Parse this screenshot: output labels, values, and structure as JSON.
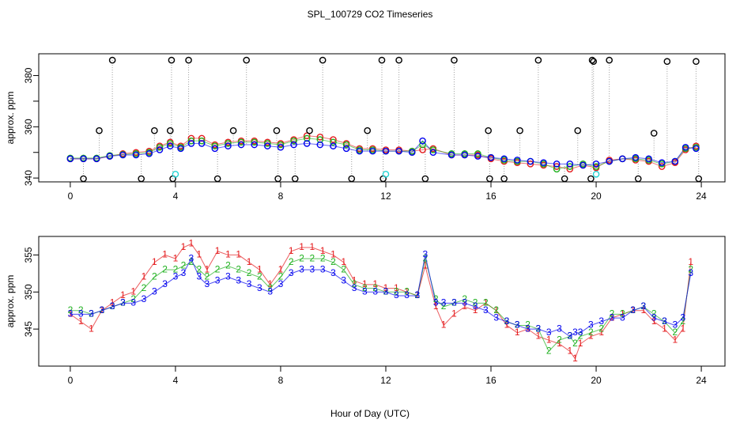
{
  "title": "SPL_100729  CO2 Timeseries",
  "xlabel": "Hour of Day (UTC)",
  "chart_data": [
    {
      "type": "scatter",
      "panel": "top",
      "ylabel": "approx. ppm",
      "xlim": [
        -1.2,
        24.9
      ],
      "ylim": [
        338.5,
        388.5
      ],
      "xticks": [
        0,
        4,
        8,
        12,
        16,
        20,
        24
      ],
      "yticks": [
        340,
        360,
        380
      ],
      "yticks_minor": [
        350,
        370
      ],
      "colors": {
        "black": "#000000",
        "red": "#e41a1c",
        "green": "#1fb11f",
        "blue": "#0000ee",
        "cyan": "#22d3d3",
        "drop": "#9a9a9a"
      },
      "series": [
        {
          "color": "red",
          "x": [
            0,
            0.5,
            1,
            1.5,
            2,
            2.5,
            3,
            3.4,
            3.8,
            4.2,
            4.6,
            5,
            5.5,
            6,
            6.5,
            7,
            7.5,
            8,
            8.5,
            9,
            9.5,
            10,
            10.5,
            11,
            11.5,
            12,
            12.5,
            13,
            13.4,
            13.8,
            14.5,
            15,
            15.5,
            16,
            16.5,
            17,
            17.5,
            18,
            18.5,
            19,
            19.5,
            20,
            20.5,
            21,
            21.5,
            22,
            22.5,
            23,
            23.4,
            23.8
          ],
          "y": [
            347.5,
            347.5,
            347.5,
            348.5,
            349.5,
            350,
            350.5,
            352.5,
            354,
            352.5,
            355.5,
            355.5,
            353,
            354,
            354.5,
            354.5,
            354,
            353.5,
            355,
            356.5,
            356,
            355,
            353.5,
            351.5,
            351.5,
            351,
            351,
            350.5,
            351,
            351.5,
            349,
            349,
            349,
            347.5,
            346.5,
            346,
            345.5,
            345,
            344.5,
            343.5,
            345,
            344,
            347,
            347.5,
            347,
            346.5,
            344.5,
            346,
            351,
            352.5
          ]
        },
        {
          "color": "green",
          "x": [
            0,
            0.5,
            1,
            1.5,
            2,
            2.5,
            3,
            3.4,
            3.8,
            4.2,
            4.6,
            5,
            5.5,
            6,
            6.5,
            7,
            7.5,
            8,
            8.5,
            9,
            9.5,
            10,
            10.5,
            11,
            11.5,
            12,
            12.5,
            13,
            13.4,
            13.8,
            14.5,
            15,
            15.5,
            16,
            16.5,
            17,
            17.5,
            18,
            18.5,
            19,
            19.5,
            20,
            20.5,
            21,
            21.5,
            22,
            22.5,
            23,
            23.4,
            23.8
          ],
          "y": [
            347.8,
            347.8,
            347.8,
            348.8,
            349.2,
            349.5,
            350,
            352,
            353.5,
            352,
            354.5,
            354.5,
            352.5,
            353.5,
            354,
            354,
            353.5,
            353,
            354.5,
            355.5,
            355,
            354,
            353,
            351,
            351,
            350.5,
            350.5,
            350.5,
            353,
            351,
            349.5,
            349.5,
            349.5,
            348,
            347,
            346.5,
            346.5,
            345.5,
            343.5,
            344.5,
            345.5,
            344.5,
            346.5,
            347.5,
            347.5,
            347,
            345.5,
            346.5,
            351.5,
            352
          ]
        },
        {
          "color": "blue",
          "x": [
            0,
            0.5,
            1,
            1.5,
            2,
            2.5,
            3,
            3.4,
            3.8,
            4.2,
            4.6,
            5,
            5.5,
            6,
            6.5,
            7,
            7.5,
            8,
            8.5,
            9,
            9.5,
            10,
            10.5,
            11,
            11.5,
            12,
            12.5,
            13,
            13.4,
            13.8,
            14.5,
            15,
            15.5,
            16,
            16.5,
            17,
            17.5,
            18,
            18.5,
            19,
            19.5,
            20,
            20.5,
            21,
            21.5,
            22,
            22.5,
            23,
            23.4,
            23.8
          ],
          "y": [
            347.5,
            347.5,
            347.5,
            348.5,
            349,
            349,
            349.5,
            351,
            352.5,
            351.5,
            353.5,
            353.5,
            351.5,
            352.5,
            353,
            353,
            352.5,
            352,
            353,
            353.5,
            353,
            352.5,
            351.5,
            350.5,
            350.5,
            350.5,
            350.5,
            350,
            354.5,
            350,
            349,
            349,
            348.5,
            348,
            347.5,
            347,
            346.5,
            346,
            345.5,
            345.5,
            345,
            345.5,
            346.5,
            347.5,
            348,
            347.5,
            346,
            346.5,
            352,
            351.5
          ]
        },
        {
          "color": "black",
          "x": [
            0.5,
            1.1,
            1.6,
            2.7,
            3.2,
            3.8,
            3.85,
            3.9,
            4.5,
            5.6,
            6.2,
            6.7,
            7.85,
            7.9,
            8.55,
            9.1,
            9.6,
            10.7,
            11.3,
            11.85,
            11.9,
            12.5,
            13.5,
            14.6,
            15.9,
            15.95,
            16.5,
            17.1,
            17.8,
            18.8,
            19.3,
            19.8,
            19.85,
            19.9,
            20.5,
            21.6,
            22.2,
            22.7,
            23.8,
            23.9
          ],
          "y": [
            339.5,
            358.5,
            386,
            339.5,
            358.5,
            358.5,
            386,
            339.5,
            386,
            339.5,
            358.5,
            386,
            358.5,
            339.5,
            339.5,
            358.5,
            386,
            339.5,
            358.5,
            386,
            339.5,
            386,
            339.5,
            386,
            358.5,
            339.5,
            339.5,
            358.5,
            386,
            339.5,
            358.5,
            339.5,
            386,
            385.5,
            386,
            339.5,
            357.5,
            385.5,
            385.5,
            339
          ]
        },
        {
          "color": "cyan",
          "x": [
            4,
            12,
            20
          ],
          "y": [
            341.5,
            341.5,
            341.5
          ]
        }
      ]
    },
    {
      "type": "scatter",
      "panel": "bottom",
      "ylabel": "approx. ppm",
      "xlim": [
        -1.2,
        24.9
      ],
      "ylim": [
        340,
        357.5
      ],
      "xticks": [
        0,
        4,
        8,
        12,
        16,
        20,
        24
      ],
      "yticks": [
        345,
        350,
        355
      ],
      "colors": {
        "1": "#e41a1c",
        "2": "#1fb11f",
        "3": "#0000ee"
      },
      "series": [
        {
          "label": "1",
          "x": [
            0,
            0.4,
            0.8,
            1.2,
            1.6,
            2,
            2.4,
            2.8,
            3.2,
            3.6,
            4,
            4.3,
            4.6,
            4.9,
            5.2,
            5.6,
            6,
            6.4,
            6.8,
            7.2,
            7.6,
            8,
            8.4,
            8.8,
            9.2,
            9.6,
            10,
            10.4,
            10.8,
            11.2,
            11.6,
            12,
            12.4,
            12.8,
            13.2,
            13.5,
            13.9,
            14.2,
            14.6,
            15,
            15.4,
            15.8,
            16.2,
            16.6,
            17,
            17.4,
            17.8,
            18.2,
            18.6,
            19,
            19.2,
            19.4,
            19.8,
            20.2,
            20.6,
            21,
            21.4,
            21.8,
            22.2,
            22.6,
            23,
            23.3,
            23.6
          ],
          "y": [
            347,
            346,
            345,
            347.5,
            348.5,
            349.5,
            350,
            352,
            354,
            355,
            354.5,
            356,
            356.5,
            355,
            353,
            355.5,
            355,
            355,
            354,
            353,
            351,
            353,
            355.5,
            356,
            356,
            355.5,
            355,
            354,
            351.5,
            351,
            351,
            350.5,
            350.5,
            350,
            349.5,
            353.5,
            348,
            345.5,
            347,
            348,
            347.5,
            348.5,
            347.5,
            345.5,
            344.5,
            345,
            344,
            343.5,
            343,
            342,
            341,
            343,
            344,
            344.5,
            346.5,
            347,
            347.5,
            347.5,
            346,
            345,
            343.5,
            345,
            354
          ]
        },
        {
          "label": "2",
          "x": [
            0,
            0.4,
            0.8,
            1.2,
            1.6,
            2,
            2.4,
            2.8,
            3.2,
            3.6,
            4,
            4.3,
            4.6,
            4.9,
            5.2,
            5.6,
            6,
            6.4,
            6.8,
            7.2,
            7.6,
            8,
            8.4,
            8.8,
            9.2,
            9.6,
            10,
            10.4,
            10.8,
            11.2,
            11.6,
            12,
            12.4,
            12.8,
            13.2,
            13.5,
            13.9,
            14.2,
            14.6,
            15,
            15.4,
            15.8,
            16.2,
            16.6,
            17,
            17.4,
            17.8,
            18.2,
            18.6,
            19,
            19.2,
            19.4,
            19.8,
            20.2,
            20.6,
            21,
            21.4,
            21.8,
            22.2,
            22.6,
            23,
            23.3,
            23.6
          ],
          "y": [
            347.5,
            347.5,
            347,
            347.5,
            348,
            348.5,
            349,
            350.5,
            352,
            353,
            353,
            353.5,
            354,
            353,
            352,
            353,
            353.5,
            353,
            352.5,
            352,
            350.5,
            352,
            354,
            354.5,
            354.5,
            354.5,
            354,
            353,
            351,
            350.5,
            350.5,
            350,
            350,
            350,
            349.5,
            354.5,
            349,
            348,
            348.5,
            349,
            348.5,
            348.5,
            347.5,
            346,
            345.5,
            345.5,
            345,
            342,
            343.5,
            344,
            343,
            344,
            344.5,
            345,
            347,
            347,
            347.5,
            348,
            347,
            346,
            344.5,
            346,
            353
          ]
        },
        {
          "label": "3",
          "x": [
            0,
            0.4,
            0.8,
            1.2,
            1.6,
            2,
            2.4,
            2.8,
            3.2,
            3.6,
            4,
            4.3,
            4.6,
            4.9,
            5.2,
            5.6,
            6,
            6.4,
            6.8,
            7.2,
            7.6,
            8,
            8.4,
            8.8,
            9.2,
            9.6,
            10,
            10.4,
            10.8,
            11.2,
            11.6,
            12,
            12.4,
            12.8,
            13.2,
            13.5,
            13.9,
            14.2,
            14.6,
            15,
            15.4,
            15.8,
            16.2,
            16.6,
            17,
            17.4,
            17.8,
            18.2,
            18.6,
            19,
            19.2,
            19.4,
            19.8,
            20.2,
            20.6,
            21,
            21.4,
            21.8,
            22.2,
            22.6,
            23,
            23.3,
            23.6
          ],
          "y": [
            347,
            347,
            347,
            347.5,
            348,
            348.5,
            348.5,
            349,
            350,
            351,
            352,
            352.5,
            354.5,
            352,
            351,
            351.5,
            352,
            351.5,
            351,
            350.5,
            350,
            351,
            352.5,
            353,
            353,
            353,
            352.5,
            351.5,
            350.5,
            350,
            350,
            350,
            349.5,
            349.5,
            349.5,
            355,
            348.5,
            348.5,
            348.5,
            348.5,
            348,
            347.5,
            346.5,
            346,
            345.5,
            345,
            345,
            344.5,
            345,
            344,
            344.5,
            344.5,
            345.5,
            346,
            346.5,
            346.5,
            347.5,
            348,
            346.5,
            346,
            345.5,
            346.5,
            352.5
          ]
        }
      ]
    }
  ]
}
